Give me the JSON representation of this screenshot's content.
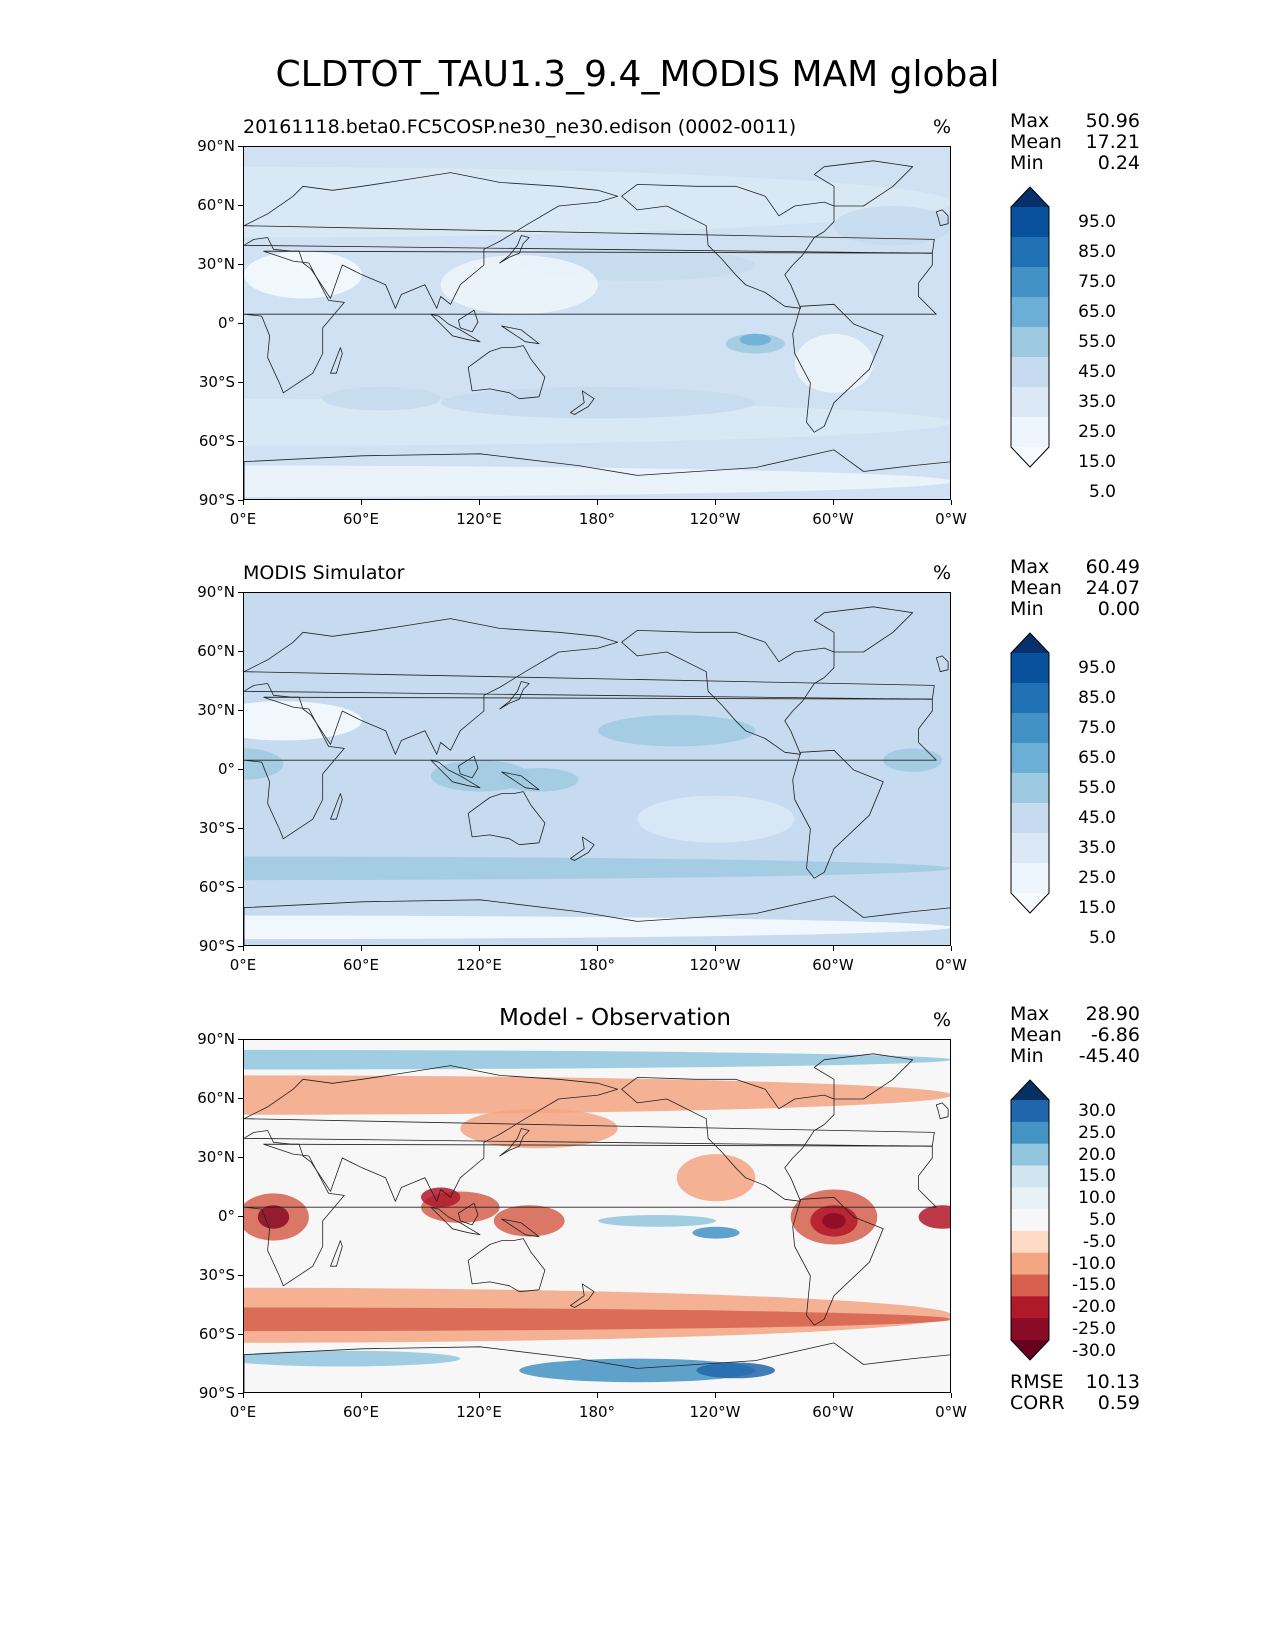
{
  "title": "CLDTOT_TAU1.3_9.4_MODIS MAM global",
  "lat_ticks": [
    "90°N",
    "60°N",
    "30°N",
    "0°",
    "30°S",
    "60°S",
    "90°S"
  ],
  "lon_ticks": [
    "0°E",
    "60°E",
    "120°E",
    "180°",
    "120°W",
    "60°W",
    "0°W"
  ],
  "panels": [
    {
      "title": "20161118.beta0.FC5COSP.ne30_ne30.edison (0002-0011)",
      "title_align": "left",
      "units": "%",
      "stats": [
        {
          "name": "Max",
          "value": "50.96"
        },
        {
          "name": "Mean",
          "value": "17.21"
        },
        {
          "name": "Min",
          "value": "0.24"
        }
      ],
      "colorbar_labels": [
        "95.0",
        "85.0",
        "75.0",
        "65.0",
        "55.0",
        "45.0",
        "35.0",
        "25.0",
        "15.0",
        "5.0"
      ],
      "colorbar_colors": [
        "#08306b",
        "#08519c",
        "#2171b5",
        "#4292c6",
        "#6baed6",
        "#9ecae1",
        "#c6dbef",
        "#dbe9f6",
        "#eef5fc",
        "#f7fbff"
      ],
      "background_color": "#cfe1f2"
    },
    {
      "title": "MODIS Simulator",
      "title_align": "left",
      "units": "%",
      "stats": [
        {
          "name": "Max",
          "value": "60.49"
        },
        {
          "name": "Mean",
          "value": "24.07"
        },
        {
          "name": "Min",
          "value": "0.00"
        }
      ],
      "colorbar_labels": [
        "95.0",
        "85.0",
        "75.0",
        "65.0",
        "55.0",
        "45.0",
        "35.0",
        "25.0",
        "15.0",
        "5.0"
      ],
      "colorbar_colors": [
        "#08306b",
        "#08519c",
        "#2171b5",
        "#4292c6",
        "#6baed6",
        "#9ecae1",
        "#c6dbef",
        "#dbe9f6",
        "#eef5fc",
        "#f7fbff"
      ],
      "background_color": "#c6dbef"
    },
    {
      "title": "Model - Observation",
      "title_align": "center",
      "units": "%",
      "stats": [
        {
          "name": "Max",
          "value": "28.90"
        },
        {
          "name": "Mean",
          "value": "-6.86"
        },
        {
          "name": "Min",
          "value": "-45.40"
        }
      ],
      "colorbar_labels": [
        "30.0",
        "25.0",
        "20.0",
        "15.0",
        "10.0",
        "5.0",
        "-5.0",
        "-10.0",
        "-15.0",
        "-20.0",
        "-25.0",
        "-30.0"
      ],
      "colorbar_colors": [
        "#053061",
        "#2166ac",
        "#4393c3",
        "#92c5de",
        "#d1e5f0",
        "#e8f1f6",
        "#f7f7f7",
        "#fddbc7",
        "#f4a582",
        "#d6604d",
        "#b2182b",
        "#8a0b25",
        "#67001f"
      ],
      "background_color": "#f7f7f7",
      "metrics": [
        {
          "name": "RMSE",
          "value": "10.13"
        },
        {
          "name": "CORR",
          "value": "0.59"
        }
      ]
    }
  ]
}
